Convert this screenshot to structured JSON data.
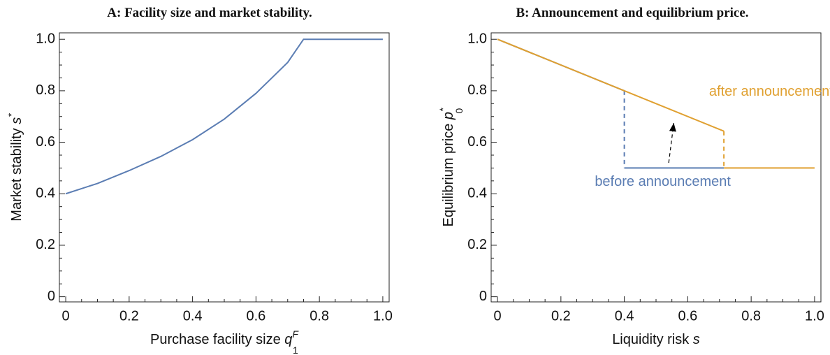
{
  "chart_data": [
    {
      "type": "line",
      "title": "A: Facility size and market stability.",
      "x_label": {
        "text": "Purchase facility size ",
        "var": "q",
        "sub": "1",
        "sup": "F"
      },
      "y_label": {
        "text": "Market stability ",
        "var": "s",
        "sup": "*"
      },
      "xlim": [
        -0.02,
        1.02
      ],
      "ylim": [
        -0.02,
        1.025
      ],
      "xticks": [
        0,
        0.2,
        0.4,
        0.6,
        0.8,
        {
          "value": 1,
          "label": "1.0"
        }
      ],
      "yticks": [
        0,
        0.2,
        0.4,
        0.6,
        0.8,
        {
          "value": 1,
          "label": "1.0"
        }
      ],
      "series": [
        {
          "color": "#5b7db3",
          "x": [
            0,
            0.1,
            0.2,
            0.3,
            0.4,
            0.5,
            0.6,
            0.7,
            0.75,
            1.0
          ],
          "values": [
            0.4,
            0.44,
            0.49,
            0.545,
            0.61,
            0.69,
            0.79,
            0.91,
            1.0,
            1.0
          ]
        }
      ]
    },
    {
      "type": "line",
      "title": "B: Announcement and equilibrium price.",
      "x_label": {
        "text": "Liquidity risk ",
        "var": "s"
      },
      "y_label": {
        "text": "Equilibrium price ",
        "var": "p",
        "sub": "0",
        "sup": "*"
      },
      "xlim": [
        -0.02,
        1.02
      ],
      "ylim": [
        -0.02,
        1.025
      ],
      "xticks": [
        0,
        0.2,
        0.4,
        0.6,
        0.8,
        {
          "value": 1,
          "label": "1.0"
        }
      ],
      "yticks": [
        0,
        0.2,
        0.4,
        0.6,
        0.8,
        {
          "value": 1,
          "label": "1.0"
        }
      ],
      "series": [
        {
          "name": "before announcement",
          "color": "#5b7db3",
          "x": [
            0,
            0.4,
            null,
            0.4,
            0.714
          ],
          "values": [
            1.0,
            0.8,
            null,
            0.5,
            0.5
          ]
        },
        {
          "color": "#5b7db3",
          "dashed": true,
          "x": [
            0.4,
            0.4
          ],
          "values": [
            0.8,
            0.5
          ]
        },
        {
          "name": "after announcement",
          "color": "#e0a030",
          "x": [
            0,
            0.714,
            null,
            0.714,
            1.0
          ],
          "values": [
            1.0,
            0.643,
            null,
            0.5,
            0.5
          ]
        },
        {
          "color": "#e0a030",
          "dashed": true,
          "x": [
            0.714,
            0.714
          ],
          "values": [
            0.643,
            0.5
          ]
        }
      ],
      "arrow": {
        "x": [
          0.54,
          0.556
        ],
        "y": [
          0.52,
          0.675
        ]
      }
    }
  ]
}
